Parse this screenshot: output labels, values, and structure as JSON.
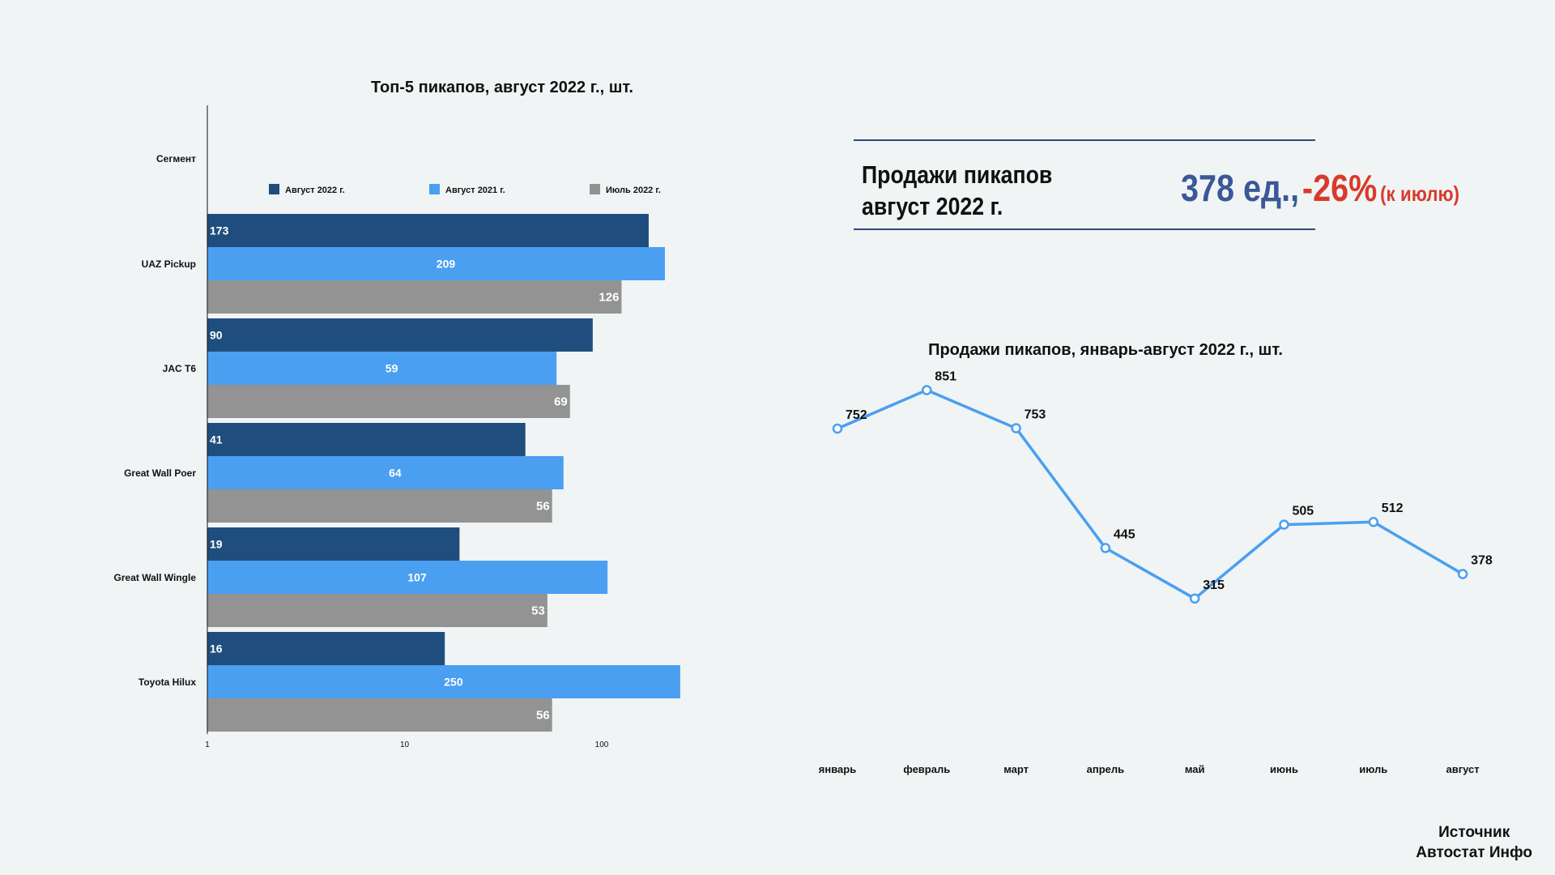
{
  "kpi": {
    "title_line1": "Продажи пикапов",
    "title_line2": "август 2022 г.",
    "sales_value": "378 ед.,",
    "change_value": "-26%",
    "change_note": "(к июлю)"
  },
  "source": {
    "line1": "Источник",
    "line2": "Автостат Инфо"
  },
  "colors": {
    "aug2022": "#1f4e7e",
    "aug2021": "#4a9ff0",
    "jul2022": "#939393",
    "line": "#4a9ff0"
  },
  "chart_data": [
    {
      "type": "bar",
      "orientation": "horizontal",
      "title": "Топ-5 пикапов, август 2022 г., шт.",
      "ylabel": "Сегмент",
      "xscale": "log",
      "xlim": [
        1,
        300
      ],
      "xticks": [
        "1",
        "10",
        "100"
      ],
      "legend_position": "top",
      "categories": [
        "UAZ Pickup",
        "JAC T6",
        "Great Wall Poer",
        "Great Wall Wingle",
        "Toyota Hilux"
      ],
      "series": [
        {
          "name": "Август 2022 г.",
          "values": [
            173,
            90,
            41,
            19,
            16
          ]
        },
        {
          "name": "Август 2021 г.",
          "values": [
            209,
            59,
            64,
            107,
            250
          ]
        },
        {
          "name": "Июль 2022 г.",
          "values": [
            126,
            69,
            56,
            53,
            56
          ]
        }
      ]
    },
    {
      "type": "line",
      "title": "Продажи пикапов, январь-август 2022 г., шт.",
      "categories": [
        "январь",
        "февраль",
        "март",
        "апрель",
        "май",
        "июнь",
        "июль",
        "август"
      ],
      "values": [
        752,
        851,
        753,
        445,
        315,
        505,
        512,
        378
      ],
      "ylim": [
        0,
        1000
      ],
      "grid": false
    }
  ]
}
